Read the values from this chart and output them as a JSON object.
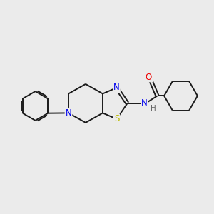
{
  "background_color": "#ebebeb",
  "bond_color": "#1a1a1a",
  "atom_colors": {
    "N": "#0000ee",
    "S": "#bbbb00",
    "O": "#ee0000",
    "H": "#666666",
    "C": "#1a1a1a"
  },
  "figsize": [
    3.0,
    3.0
  ],
  "dpi": 100
}
